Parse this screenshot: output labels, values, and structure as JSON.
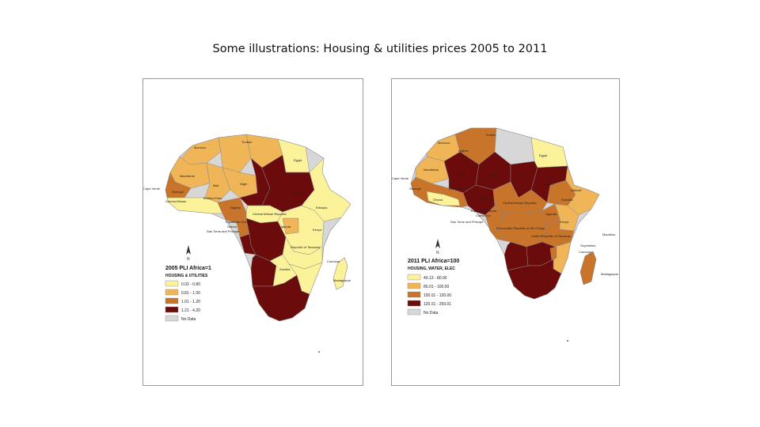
{
  "slide": {
    "title": "Some illustrations: Housing & utilities prices 2005 to 2011"
  },
  "colors": {
    "class1": "#fbf29a",
    "class2": "#f0b556",
    "class3": "#c8742a",
    "class4": "#6b0b0b",
    "nodata": "#d7d7d7",
    "border": "#8a8a8a"
  },
  "maps": [
    {
      "id": "map-2005",
      "legend_title": "2005 PLI Africa=1",
      "legend_subtitle": "HOUSING & UTILITIES",
      "classes": [
        "0.02 - 0.80",
        "0.81 - 1.00",
        "1.01 - 1.20",
        "1.21 - 4.20"
      ],
      "no_data_label": "No Data",
      "north_label": "N",
      "country_labels": [
        "Tunisia",
        "Morocco",
        "Egypt",
        "Mauritania",
        "Mali",
        "Niger",
        "Chad",
        "Sudan",
        "Senegal",
        "Cape Verde",
        "Guinea-Bissau",
        "Burkina Faso",
        "Nigeria",
        "Ethiopia",
        "Central African Republic",
        "Equatorial Guinea",
        "Gabon",
        "San Tome and Principe",
        "Uganda",
        "Kenya",
        "Republic of Tanzania",
        "Comoros",
        "Zambia",
        "Madagascar"
      ]
    },
    {
      "id": "map-2011",
      "legend_title": "2011 PLI Africa=100",
      "legend_subtitle": "HOUSING, WATER, ELEC",
      "classes": [
        "40.13 - 80.00",
        "80.01 - 100.00",
        "100.01 - 120.00",
        "120.01 - 259.01"
      ],
      "no_data_label": "No Data",
      "north_label": "N",
      "country_labels": [
        "Tunisia",
        "Morocco",
        "Algeria",
        "Egypt",
        "Mauritania",
        "Mali",
        "Niger",
        "Chad",
        "Sudan",
        "Cape Verde",
        "Senegal",
        "Burkina Faso",
        "Ghana",
        "Nigeria",
        "Djibouti",
        "Somalia",
        "Central African Republic",
        "Equatorial Guinea",
        "Cameroon",
        "San Tome and Principe",
        "Uganda",
        "Kenya",
        "Democratic Republic of the Congo",
        "United Republic of Tanzania",
        "Seychelles",
        "Comoros",
        "Mauritius",
        "Madagascar"
      ]
    }
  ]
}
